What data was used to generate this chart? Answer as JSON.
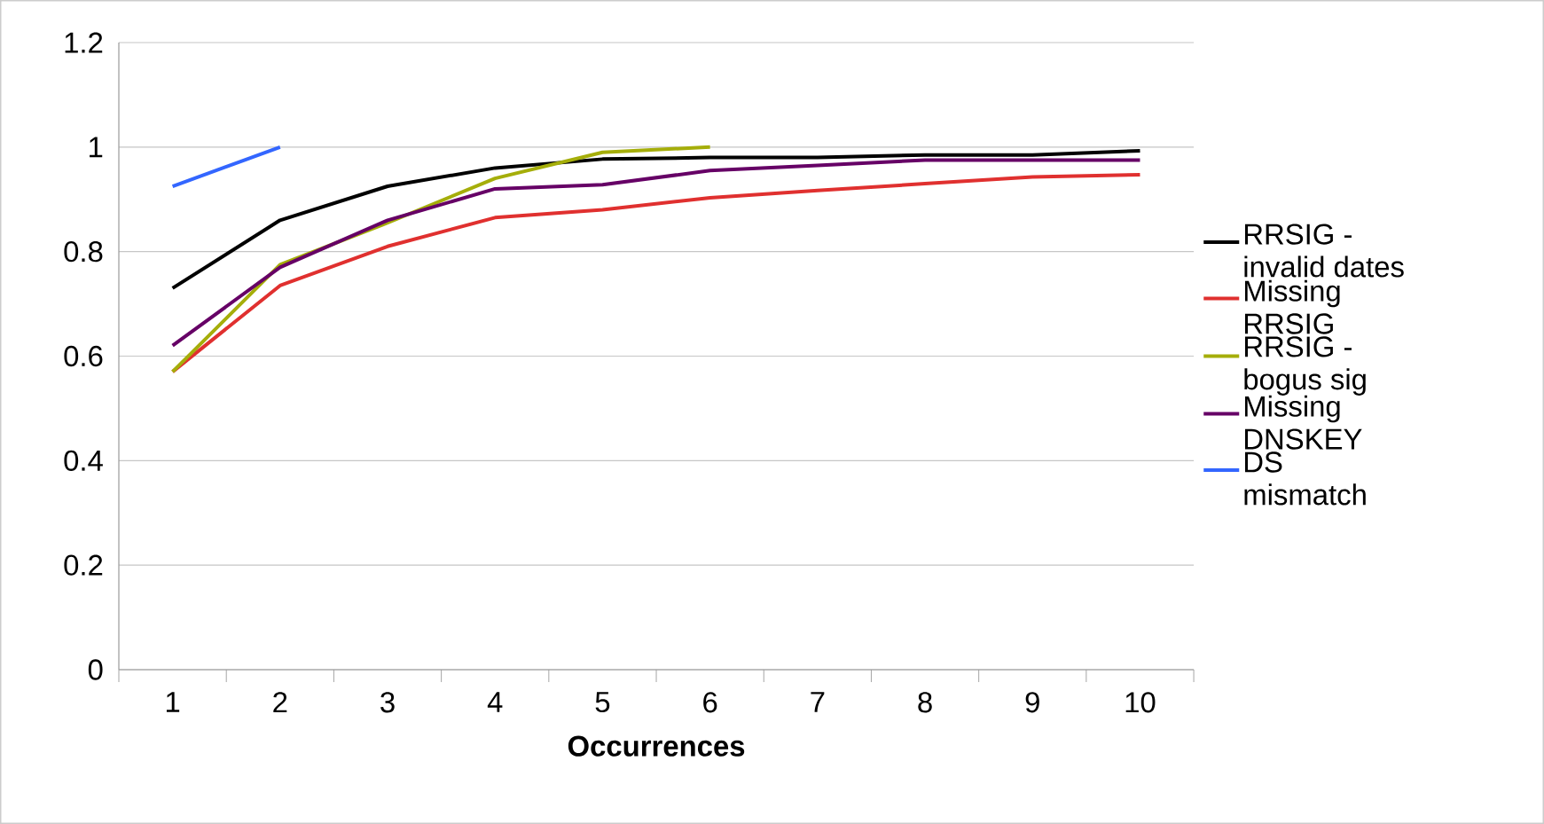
{
  "chart_data": {
    "type": "line",
    "xlabel": "Occurrences",
    "categories": [
      "1",
      "2",
      "3",
      "4",
      "5",
      "6",
      "7",
      "8",
      "9",
      "10"
    ],
    "ylim": [
      0,
      1.2
    ],
    "yticks": [
      0,
      0.2,
      0.4,
      0.6,
      0.8,
      1,
      1.2
    ],
    "grid": "y",
    "legend": "right",
    "series": [
      {
        "name": "RRSIG - invalid dates",
        "color": "#000000",
        "values": [
          0.73,
          0.86,
          0.925,
          0.96,
          0.977,
          0.98,
          0.98,
          0.985,
          0.985,
          0.993
        ]
      },
      {
        "name": "Missing RRSIG",
        "color": "#e0302f",
        "values": [
          0.57,
          0.735,
          0.81,
          0.865,
          0.88,
          0.903,
          0.917,
          0.93,
          0.943,
          0.947
        ]
      },
      {
        "name": "RRSIG - bogus sig",
        "color": "#a5ae0a",
        "values": [
          0.57,
          0.775,
          0.855,
          0.94,
          0.99,
          1.0,
          null,
          null,
          null,
          null
        ]
      },
      {
        "name": "Missing DNSKEY",
        "color": "#660066",
        "values": [
          0.62,
          0.77,
          0.86,
          0.92,
          0.928,
          0.955,
          0.965,
          0.975,
          0.975,
          0.975
        ]
      },
      {
        "name": "DS mismatch",
        "color": "#3366ff",
        "values": [
          0.925,
          1.0,
          null,
          null,
          null,
          null,
          null,
          null,
          null,
          null
        ]
      }
    ]
  }
}
